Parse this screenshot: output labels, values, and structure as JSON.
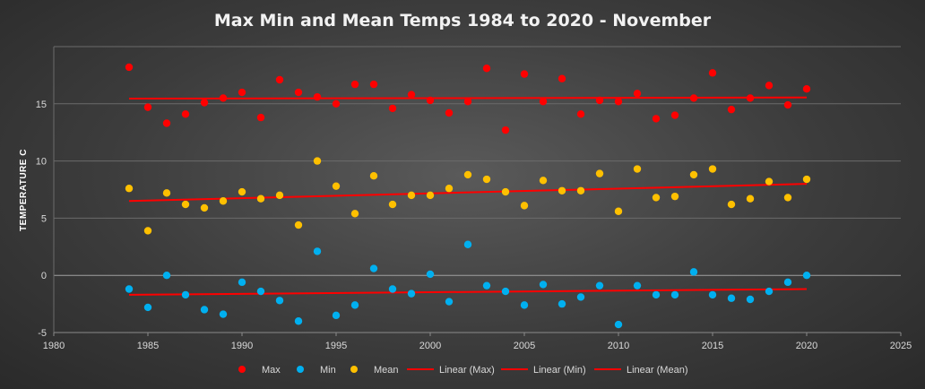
{
  "chart_data": {
    "type": "scatter",
    "title": "Max Min and Mean Temps 1984 to 2020 - November",
    "xlabel": "",
    "ylabel": "TEMPERATURE C",
    "xlim": [
      1980,
      2025
    ],
    "ylim": [
      -5,
      20
    ],
    "x_ticks": [
      1980,
      1985,
      1990,
      1995,
      2000,
      2005,
      2010,
      2015,
      2020,
      2025
    ],
    "y_ticks": [
      -5,
      0,
      5,
      10,
      15
    ],
    "x": [
      1984,
      1985,
      1986,
      1987,
      1988,
      1989,
      1990,
      1991,
      1992,
      1993,
      1994,
      1995,
      1996,
      1997,
      1998,
      1999,
      2000,
      2001,
      2002,
      2003,
      2004,
      2005,
      2006,
      2007,
      2008,
      2009,
      2010,
      2011,
      2012,
      2013,
      2014,
      2015,
      2016,
      2017,
      2018,
      2019,
      2020
    ],
    "series": [
      {
        "name": "Max",
        "color": "#ff0000",
        "values": [
          18.2,
          14.7,
          13.3,
          14.1,
          15.1,
          15.5,
          16.0,
          13.8,
          17.1,
          16.0,
          15.6,
          15.0,
          16.7,
          16.7,
          14.6,
          15.8,
          15.3,
          14.2,
          15.2,
          18.1,
          12.7,
          17.6,
          15.2,
          17.2,
          14.1,
          15.3,
          15.2,
          15.9,
          13.7,
          14.0,
          15.5,
          17.7,
          14.5,
          15.5,
          16.6,
          14.9,
          16.3
        ]
      },
      {
        "name": "Min",
        "color": "#00b0f0",
        "values": [
          -1.2,
          -2.8,
          0.0,
          -1.7,
          -3.0,
          -3.4,
          -0.6,
          -1.4,
          -2.2,
          -4.0,
          2.1,
          -3.5,
          -2.6,
          0.6,
          -1.2,
          -1.6,
          0.1,
          -2.3,
          2.7,
          -0.9,
          -1.4,
          -2.6,
          -0.8,
          -2.5,
          -1.9,
          -0.9,
          -4.3,
          -0.9,
          -1.7,
          -1.7,
          0.3,
          -1.7,
          -2.0,
          -2.1,
          -1.4,
          -0.6,
          0.0
        ]
      },
      {
        "name": "Mean",
        "color": "#ffc000",
        "values": [
          7.6,
          3.9,
          7.2,
          6.2,
          5.9,
          6.5,
          7.3,
          6.7,
          7.0,
          4.4,
          10.0,
          7.8,
          5.4,
          8.7,
          6.2,
          7.0,
          7.0,
          7.6,
          8.8,
          8.4,
          7.3,
          6.1,
          8.3,
          7.4,
          7.4,
          8.9,
          5.6,
          9.3,
          6.8,
          6.9,
          8.8,
          9.3,
          6.2,
          6.7,
          8.2,
          6.8,
          8.4
        ]
      }
    ],
    "trendlines": [
      {
        "name": "Linear (Max)",
        "color": "#ff0000",
        "x": [
          1984,
          2020
        ],
        "y": [
          15.45,
          15.55
        ]
      },
      {
        "name": "Linear (Min)",
        "color": "#ff0000",
        "x": [
          1984,
          2020
        ],
        "y": [
          -1.7,
          -1.2
        ]
      },
      {
        "name": "Linear (Mean)",
        "color": "#ff0000",
        "x": [
          1984,
          2020
        ],
        "y": [
          6.5,
          8.0
        ]
      }
    ],
    "legend": {
      "position": "bottom",
      "entries": [
        "Max",
        "Min",
        "Mean",
        "Linear (Max)",
        "Linear (Min)",
        "Linear (Mean)"
      ]
    },
    "grid": true,
    "colors": {
      "gridline": "#6b6b6b",
      "zero_line": "#a0a0a0",
      "trend": "#ff0000"
    }
  }
}
